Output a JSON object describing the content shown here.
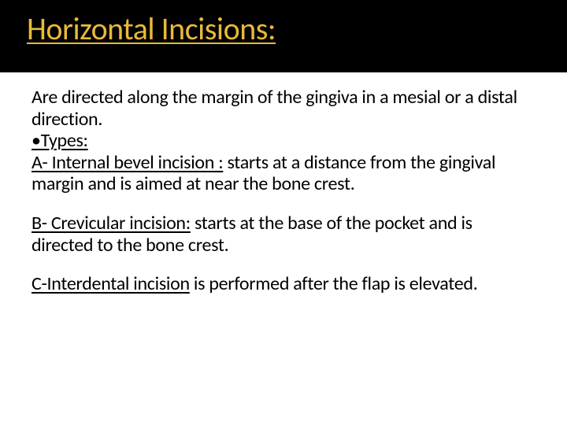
{
  "slide": {
    "title": "Horizontal Incisions:",
    "title_color": "#e8b93b",
    "title_band_bg": "#000000",
    "title_band_height": 92,
    "title_fontsize": 40,
    "body_fontsize": 24,
    "body_color": "#000000",
    "background_color": "#ffffff",
    "intro": "Are directed along the margin of the gingiva in a mesial or a distal direction.",
    "types_label": "•Types:",
    "sections": {
      "a": {
        "head": "A- Internal bevel incision :",
        "rest": " starts at a distance from the gingival margin and is aimed at near the bone crest."
      },
      "b": {
        "head": "B- Crevicular incision:",
        "rest": " starts at the base of the pocket and is directed to the bone crest."
      },
      "c": {
        "head": "C-Interdental incision",
        "rest": " is performed after the flap is elevated."
      }
    }
  }
}
